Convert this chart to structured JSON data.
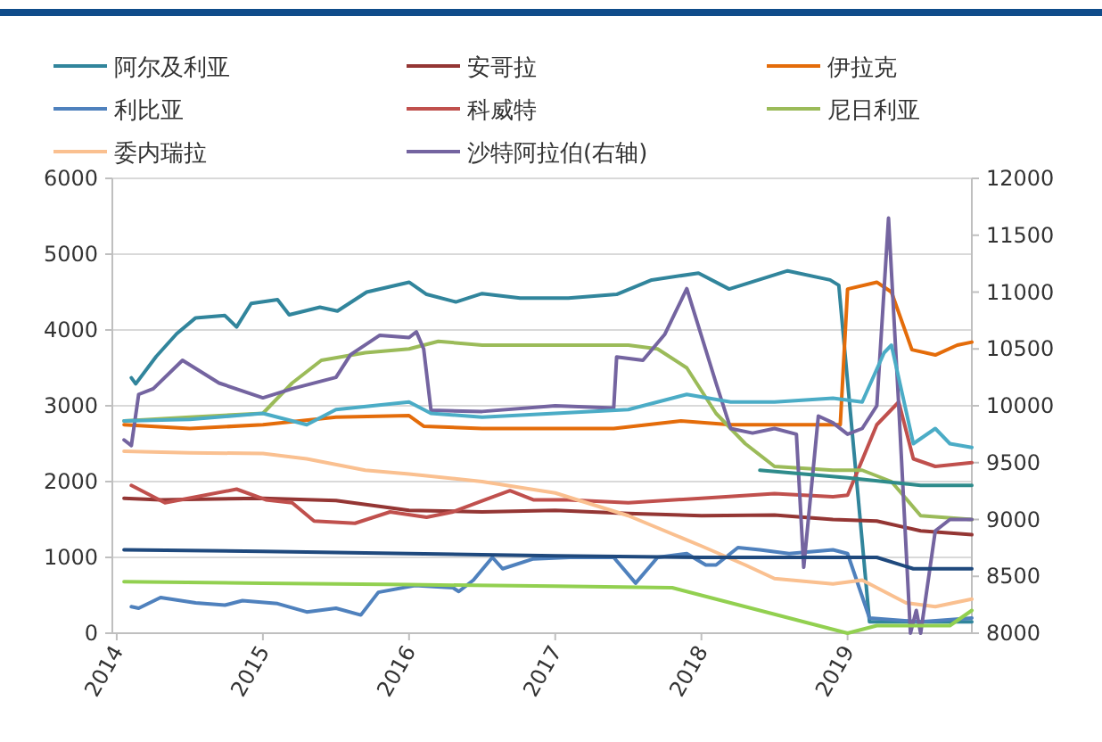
{
  "chart_data": {
    "type": "line",
    "xlim": [
      2013.97,
      2019.85
    ],
    "xticks": [
      2014,
      2015,
      2016,
      2017,
      2018,
      2019
    ],
    "ylim": [
      0,
      6000
    ],
    "yticks": [
      0,
      1000,
      2000,
      3000,
      4000,
      5000,
      6000
    ],
    "y2lim": [
      8000,
      12000
    ],
    "y2ticks": [
      8000,
      8500,
      9000,
      9500,
      10000,
      10500,
      11000,
      11500,
      12000
    ],
    "grid": "y",
    "legend": "top",
    "marker": "none",
    "line_style": "solid",
    "series": [
      {
        "name": "阿尔及利亚",
        "color": "#31859c",
        "x": [
          2014.1,
          2014.13,
          2014.27,
          2014.41,
          2014.54,
          2014.74,
          2014.82,
          2014.92,
          2015.1,
          2015.18,
          2015.39,
          2015.51,
          2015.71,
          2016.0,
          2016.12,
          2016.32,
          2016.5,
          2016.76,
          2017.09,
          2017.42,
          2017.66,
          2017.98,
          2018.19,
          2018.39,
          2018.59,
          2018.88,
          2018.94,
          2019.15,
          2019.85
        ],
        "values": [
          3370,
          3290,
          3650,
          3950,
          4160,
          4190,
          4040,
          4350,
          4400,
          4200,
          4300,
          4250,
          4500,
          4630,
          4470,
          4370,
          4480,
          4420,
          4420,
          4470,
          4660,
          4750,
          4540,
          4660,
          4780,
          4660,
          4590,
          150,
          150
        ]
      },
      {
        "name": "安哥拉",
        "color": "#943634",
        "x": [
          2014.05,
          2014.3,
          2015.0,
          2015.5,
          2016.0,
          2016.5,
          2017.0,
          2017.5,
          2018.0,
          2018.5,
          2018.9,
          2019.2,
          2019.5,
          2019.85
        ],
        "values": [
          1780,
          1760,
          1780,
          1750,
          1620,
          1600,
          1620,
          1580,
          1550,
          1560,
          1500,
          1480,
          1350,
          1300
        ]
      },
      {
        "name": "伊拉克",
        "color": "#e46c0a",
        "x": [
          2014.05,
          2014.5,
          2015.0,
          2015.5,
          2016.0,
          2016.1,
          2016.5,
          2017.0,
          2017.4,
          2017.86,
          2018.2,
          2018.5,
          2018.95,
          2019.0,
          2019.2,
          2019.3,
          2019.44,
          2019.6,
          2019.75,
          2019.85
        ],
        "values": [
          2750,
          2700,
          2750,
          2850,
          2870,
          2730,
          2700,
          2700,
          2700,
          2800,
          2750,
          2750,
          2750,
          4540,
          4630,
          4500,
          3740,
          3670,
          3800,
          3840
        ]
      },
      {
        "name": "利比亚",
        "color": "#4f81bd",
        "x": [
          2014.1,
          2014.15,
          2014.3,
          2014.54,
          2014.74,
          2014.86,
          2015.1,
          2015.3,
          2015.5,
          2015.67,
          2015.79,
          2016.04,
          2016.3,
          2016.34,
          2016.44,
          2016.57,
          2016.64,
          2016.85,
          2017.1,
          2017.4,
          2017.55,
          2017.7,
          2017.9,
          2018.03,
          2018.1,
          2018.25,
          2018.4,
          2018.6,
          2018.9,
          2019.0,
          2019.15,
          2019.5,
          2019.85
        ],
        "values": [
          350,
          330,
          470,
          400,
          370,
          430,
          390,
          280,
          330,
          240,
          540,
          630,
          600,
          550,
          700,
          1000,
          850,
          980,
          1000,
          1000,
          660,
          1000,
          1050,
          900,
          900,
          1130,
          1100,
          1050,
          1100,
          1050,
          200,
          150,
          200
        ]
      },
      {
        "name": "科威特",
        "color": "#c0504d",
        "x": [
          2014.1,
          2014.33,
          2014.82,
          2015.02,
          2015.2,
          2015.35,
          2015.63,
          2015.87,
          2016.12,
          2016.3,
          2016.52,
          2016.69,
          2016.85,
          2017.09,
          2017.5,
          2018.0,
          2018.5,
          2018.9,
          2019.0,
          2019.2,
          2019.35,
          2019.45,
          2019.6,
          2019.85
        ],
        "values": [
          1950,
          1720,
          1900,
          1760,
          1720,
          1480,
          1450,
          1600,
          1530,
          1600,
          1760,
          1880,
          1760,
          1760,
          1720,
          1780,
          1840,
          1800,
          1820,
          2750,
          3050,
          2300,
          2200,
          2250
        ]
      },
      {
        "name": "尼日利亚",
        "color": "#9bbb59",
        "x": [
          2014.05,
          2014.5,
          2015.0,
          2015.2,
          2015.4,
          2015.7,
          2016.0,
          2016.2,
          2016.5,
          2017.0,
          2017.5,
          2017.7,
          2017.9,
          2018.1,
          2018.3,
          2018.5,
          2018.9,
          2019.1,
          2019.3,
          2019.5,
          2019.85
        ],
        "values": [
          2800,
          2850,
          2900,
          3300,
          3600,
          3700,
          3750,
          3850,
          3800,
          3800,
          3800,
          3750,
          3500,
          2900,
          2500,
          2200,
          2150,
          2150,
          2000,
          1550,
          1500
        ]
      },
      {
        "name": "委内瑞拉",
        "color": "#fac090",
        "x": [
          2014.05,
          2014.5,
          2015.0,
          2015.3,
          2015.7,
          2016.0,
          2016.5,
          2017.0,
          2017.5,
          2018.0,
          2018.3,
          2018.5,
          2018.9,
          2019.1,
          2019.4,
          2019.6,
          2019.85
        ],
        "values": [
          2400,
          2380,
          2370,
          2300,
          2150,
          2100,
          2000,
          1850,
          1550,
          1150,
          900,
          720,
          650,
          700,
          400,
          350,
          450
        ]
      },
      {
        "name": "沙特阿拉伯(右轴)",
        "color": "#7464a0",
        "axis": "y2",
        "x": [
          2014.05,
          2014.1,
          2014.15,
          2014.25,
          2014.45,
          2014.7,
          2015.0,
          2015.2,
          2015.5,
          2015.6,
          2015.8,
          2016.0,
          2016.05,
          2016.1,
          2016.15,
          2016.5,
          2017.0,
          2017.4,
          2017.42,
          2017.6,
          2017.75,
          2017.9,
          2018.1,
          2018.2,
          2018.35,
          2018.5,
          2018.65,
          2018.7,
          2018.8,
          2018.9,
          2019.0,
          2019.1,
          2019.2,
          2019.28,
          2019.35,
          2019.43,
          2019.47,
          2019.5,
          2019.6,
          2019.7,
          2019.85
        ],
        "values": [
          9700,
          9650,
          10100,
          10150,
          10400,
          10200,
          10070,
          10150,
          10250,
          10450,
          10620,
          10600,
          10650,
          10500,
          9960,
          9950,
          10000,
          9980,
          10430,
          10400,
          10630,
          11030,
          10200,
          9800,
          9760,
          9800,
          9750,
          8580,
          9910,
          9850,
          9750,
          9800,
          10000,
          11650,
          10000,
          8000,
          8200,
          8000,
          8900,
          9000,
          9000
        ]
      },
      {
        "color": "#1f497d",
        "x": [
          2014.05,
          2015.0,
          2016.0,
          2017.0,
          2018.0,
          2018.9,
          2019.2,
          2019.45,
          2019.85
        ],
        "values": [
          1100,
          1080,
          1050,
          1020,
          1000,
          1000,
          1000,
          850,
          850
        ]
      },
      {
        "color": "#4bacc6",
        "x": [
          2014.05,
          2014.5,
          2015.0,
          2015.3,
          2015.5,
          2016.0,
          2016.15,
          2016.5,
          2017.0,
          2017.5,
          2017.9,
          2018.2,
          2018.5,
          2018.9,
          2019.1,
          2019.25,
          2019.3,
          2019.45,
          2019.6,
          2019.7,
          2019.85
        ],
        "values": [
          2800,
          2820,
          2900,
          2750,
          2950,
          3050,
          2900,
          2850,
          2900,
          2950,
          3150,
          3050,
          3050,
          3100,
          3050,
          3700,
          3800,
          2500,
          2700,
          2500,
          2450
        ]
      },
      {
        "color": "#92d050",
        "x": [
          2014.05,
          2015.0,
          2016.0,
          2017.0,
          2017.8,
          2019.0,
          2019.2,
          2019.7,
          2019.85
        ],
        "values": [
          680,
          660,
          640,
          620,
          600,
          0,
          100,
          100,
          300
        ]
      },
      {
        "color": "#2e8b8b",
        "x": [
          2018.4,
          2019.0,
          2019.5,
          2019.85
        ],
        "values": [
          2150,
          2050,
          1950,
          1950
        ]
      }
    ]
  }
}
